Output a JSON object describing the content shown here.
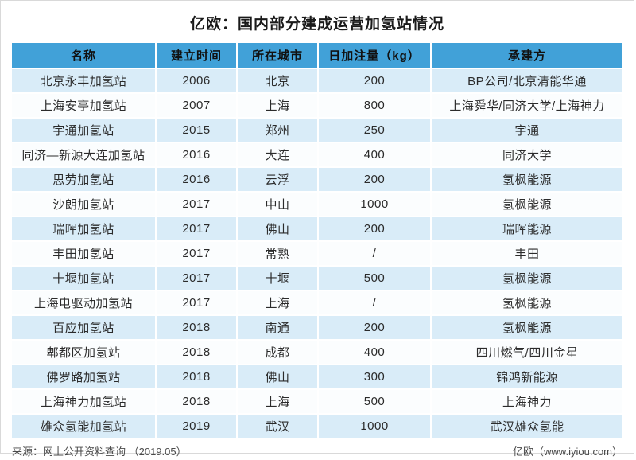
{
  "title": "亿欧：国内部分建成运营加氢站情况",
  "footer": {
    "source": "来源：网上公开资料查询 （2019.05）",
    "brand": "亿欧（www.iyiou.com）"
  },
  "colors": {
    "header_bg": "#41a1d8",
    "row_alt_bg": "#d9ecf8"
  },
  "chart_data": {
    "type": "table",
    "title": "亿欧：国内部分建成运营加氢站情况",
    "headers": [
      "名称",
      "建立时间",
      "所在城市",
      "日加注量（kg）",
      "承建方"
    ],
    "rows": [
      [
        "北京永丰加氢站",
        "2006",
        "北京",
        "200",
        "BP公司/北京清能华通"
      ],
      [
        "上海安亭加氢站",
        "2007",
        "上海",
        "800",
        "上海舜华/同济大学/上海神力"
      ],
      [
        "宇通加氢站",
        "2015",
        "郑州",
        "250",
        "宇通"
      ],
      [
        "同济—新源大连加氢站",
        "2016",
        "大连",
        "400",
        "同济大学"
      ],
      [
        "思劳加氢站",
        "2016",
        "云浮",
        "200",
        "氢枫能源"
      ],
      [
        "沙朗加氢站",
        "2017",
        "中山",
        "1000",
        "氢枫能源"
      ],
      [
        "瑞晖加氢站",
        "2017",
        "佛山",
        "200",
        "瑞晖能源"
      ],
      [
        "丰田加氢站",
        "2017",
        "常熟",
        "/",
        "丰田"
      ],
      [
        "十堰加氢站",
        "2017",
        "十堰",
        "500",
        "氢枫能源"
      ],
      [
        "上海电驱动加氢站",
        "2017",
        "上海",
        "/",
        "氢枫能源"
      ],
      [
        "百应加氢站",
        "2018",
        "南通",
        "200",
        "氢枫能源"
      ],
      [
        "郫都区加氢站",
        "2018",
        "成都",
        "400",
        "四川燃气/四川金星"
      ],
      [
        "佛罗路加氢站",
        "2018",
        "佛山",
        "300",
        "锦鸿新能源"
      ],
      [
        "上海神力加氢站",
        "2018",
        "上海",
        "500",
        "上海神力"
      ],
      [
        "雄众氢能加氢站",
        "2019",
        "武汉",
        "1000",
        "武汉雄众氢能"
      ]
    ]
  }
}
